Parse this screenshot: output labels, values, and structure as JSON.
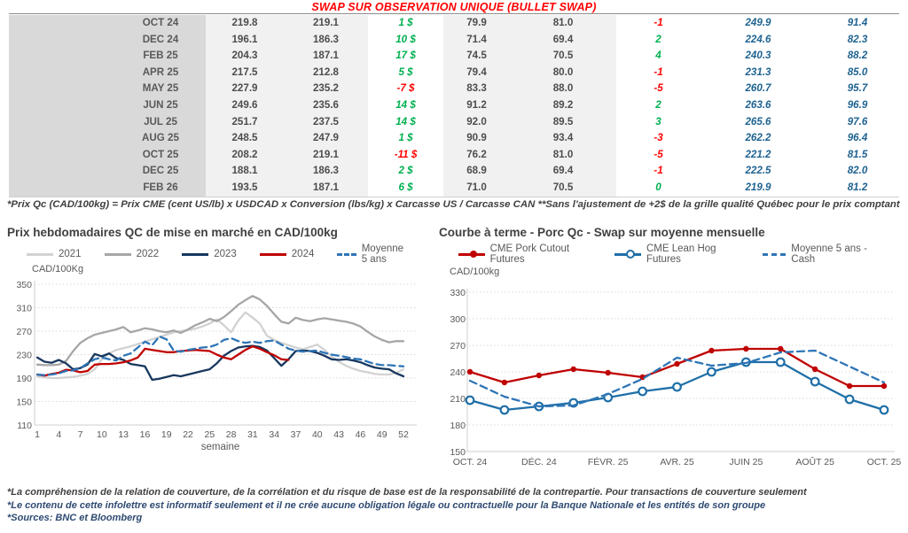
{
  "table": {
    "title": "SWAP SUR OBSERVATION UNIQUE (BULLET SWAP)",
    "footnote": "*Prix Qc (CAD/100kg) = Prix CME (cent US/lb) x USDCAD x Conversion (lbs/kg) x Carcasse US / Carcasse CAN **Sans l'ajustement de +2$ de la grille qualité Québec pour le prix comptant",
    "rows": [
      {
        "month": "OCT 24",
        "qc": "219.8",
        "swap": "219.1",
        "diff": "1 $",
        "diff_sign": "pos",
        "qc_us": "79.9",
        "swap_us": "81.0",
        "delta": "-1",
        "delta_sign": "neg",
        "moy": "249.9",
        "moy_us": "91.4"
      },
      {
        "month": "DEC 24",
        "qc": "196.1",
        "swap": "186.3",
        "diff": "10 $",
        "diff_sign": "pos",
        "qc_us": "71.4",
        "swap_us": "69.4",
        "delta": "2",
        "delta_sign": "pos",
        "moy": "224.6",
        "moy_us": "82.3"
      },
      {
        "month": "FEB 25",
        "qc": "204.3",
        "swap": "187.1",
        "diff": "17 $",
        "diff_sign": "pos",
        "qc_us": "74.5",
        "swap_us": "70.5",
        "delta": "4",
        "delta_sign": "pos",
        "moy": "240.3",
        "moy_us": "88.2"
      },
      {
        "month": "APR 25",
        "qc": "217.5",
        "swap": "212.8",
        "diff": "5 $",
        "diff_sign": "pos",
        "qc_us": "79.4",
        "swap_us": "80.0",
        "delta": "-1",
        "delta_sign": "neg",
        "moy": "231.3",
        "moy_us": "85.0"
      },
      {
        "month": "MAY 25",
        "qc": "227.9",
        "swap": "235.2",
        "diff": "-7 $",
        "diff_sign": "neg",
        "qc_us": "83.3",
        "swap_us": "88.0",
        "delta": "-5",
        "delta_sign": "neg",
        "moy": "260.7",
        "moy_us": "95.7"
      },
      {
        "month": "JUN 25",
        "qc": "249.6",
        "swap": "235.6",
        "diff": "14 $",
        "diff_sign": "pos",
        "qc_us": "91.2",
        "swap_us": "89.2",
        "delta": "2",
        "delta_sign": "pos",
        "moy": "263.6",
        "moy_us": "96.9"
      },
      {
        "month": "JUL 25",
        "qc": "251.7",
        "swap": "237.5",
        "diff": "14 $",
        "diff_sign": "pos",
        "qc_us": "92.0",
        "swap_us": "89.5",
        "delta": "3",
        "delta_sign": "pos",
        "moy": "265.6",
        "moy_us": "97.6"
      },
      {
        "month": "AUG 25",
        "qc": "248.5",
        "swap": "247.9",
        "diff": "1 $",
        "diff_sign": "pos",
        "qc_us": "90.9",
        "swap_us": "93.4",
        "delta": "-3",
        "delta_sign": "neg",
        "moy": "262.2",
        "moy_us": "96.4"
      },
      {
        "month": "OCT 25",
        "qc": "208.2",
        "swap": "219.1",
        "diff": "-11 $",
        "diff_sign": "neg",
        "qc_us": "76.2",
        "swap_us": "81.0",
        "delta": "-5",
        "delta_sign": "neg",
        "moy": "221.2",
        "moy_us": "81.5"
      },
      {
        "month": "DEC 25",
        "qc": "188.1",
        "swap": "186.3",
        "diff": "2 $",
        "diff_sign": "pos",
        "qc_us": "68.9",
        "swap_us": "69.4",
        "delta": "-1",
        "delta_sign": "neg",
        "moy": "222.5",
        "moy_us": "82.0"
      },
      {
        "month": "FEB 26",
        "qc": "193.5",
        "swap": "187.1",
        "diff": "6 $",
        "diff_sign": "pos",
        "qc_us": "71.0",
        "swap_us": "70.5",
        "delta": "0",
        "delta_sign": "pos",
        "moy": "219.9",
        "moy_us": "81.2"
      }
    ]
  },
  "chart_data": [
    {
      "id": "weekly_prices",
      "type": "line",
      "title": "Prix hebdomadaires QC de mise en marché en CAD/100kg",
      "ylabel": "CAD/100Kg",
      "xlabel": "semaine",
      "ylim": [
        110,
        350
      ],
      "y_ticks": [
        350,
        310,
        270,
        230,
        190,
        150,
        110
      ],
      "x_count": 52,
      "x_tick_positions": [
        0,
        3,
        6,
        9,
        12,
        15,
        18,
        21,
        24,
        27,
        30,
        33,
        36,
        39,
        42,
        45,
        48,
        51
      ],
      "x_tick_labels": [
        "1",
        "4",
        "7",
        "10",
        "13",
        "16",
        "19",
        "22",
        "25",
        "28",
        "31",
        "34",
        "37",
        "40",
        "43",
        "46",
        "49",
        "52"
      ],
      "grid": true,
      "legend_position": "top",
      "series": [
        {
          "name": "2021",
          "color": "#d2d2d2",
          "style": "solid",
          "marker": "none",
          "values": [
            193,
            191,
            190,
            190,
            191,
            192,
            194,
            197,
            205,
            222,
            232,
            238,
            241,
            244,
            248,
            252,
            256,
            260,
            264,
            268,
            270,
            272,
            274,
            278,
            283,
            290,
            280,
            268,
            288,
            302,
            293,
            283,
            262,
            255,
            250,
            246,
            242,
            239,
            243,
            247,
            238,
            227,
            218,
            211,
            206,
            202,
            200,
            197,
            196,
            196,
            199,
            205
          ]
        },
        {
          "name": "2022",
          "color": "#a6a6a6",
          "style": "solid",
          "marker": "none",
          "values": [
            213,
            212,
            212,
            213,
            219,
            236,
            250,
            258,
            264,
            267,
            270,
            273,
            277,
            268,
            271,
            275,
            273,
            270,
            268,
            271,
            267,
            273,
            280,
            285,
            291,
            287,
            294,
            304,
            315,
            323,
            330,
            324,
            313,
            299,
            286,
            283,
            293,
            289,
            287,
            290,
            292,
            290,
            288,
            286,
            283,
            278,
            269,
            261,
            255,
            251,
            253,
            253
          ]
        },
        {
          "name": "2023",
          "color": "#17375e",
          "style": "solid",
          "marker": "none",
          "values": [
            225,
            218,
            216,
            221,
            215,
            205,
            207,
            213,
            231,
            227,
            232,
            224,
            221,
            214,
            212,
            210,
            187,
            189,
            192,
            195,
            193,
            196,
            199,
            202,
            205,
            215,
            228,
            236,
            242,
            244,
            245,
            243,
            237,
            224,
            211,
            222,
            236,
            237,
            236,
            233,
            228,
            222,
            221,
            222,
            220,
            217,
            212,
            208,
            206,
            205,
            198,
            193
          ]
        },
        {
          "name": "2024",
          "color": "#c00000",
          "style": "solid",
          "marker": "none",
          "values": [
            196,
            194,
            197,
            199,
            204,
            203,
            200,
            202,
            213,
            214,
            214,
            215,
            217,
            220,
            225,
            240,
            238,
            236,
            234,
            234,
            236,
            237,
            238,
            237,
            236,
            230,
            225,
            222,
            230,
            238,
            244,
            240,
            234,
            229,
            222,
            221
          ]
        },
        {
          "name": "Moyenne 5 ans",
          "color": "#2e75b6",
          "style": "dashed",
          "marker": "none",
          "values": [
            196,
            195,
            196,
            198,
            202,
            203,
            207,
            215,
            222,
            225,
            222,
            220,
            228,
            232,
            242,
            252,
            246,
            261,
            256,
            237,
            235,
            238,
            240,
            242,
            243,
            247,
            255,
            258,
            253,
            250,
            252,
            250,
            253,
            254,
            247,
            240,
            237,
            235,
            236,
            237,
            233,
            230,
            228,
            226,
            223,
            222,
            218,
            214,
            212,
            212,
            211,
            210
          ]
        }
      ]
    },
    {
      "id": "forward_curve",
      "type": "line",
      "title": "Courbe à terme - Porc Qc - Swap sur moyenne mensuelle",
      "ylabel": "CAD/100kg",
      "xlabel": "",
      "ylim": [
        150,
        330
      ],
      "y_ticks": [
        330,
        300,
        270,
        240,
        210,
        180,
        150
      ],
      "x_count": 13,
      "x_tick_positions": [
        0,
        2,
        4,
        6,
        8,
        10,
        12
      ],
      "x_tick_labels": [
        "OCT. 24",
        "DÉC. 24",
        "FÉVR. 25",
        "AVR. 25",
        "JUIN 25",
        "AOÛT 25",
        "OCT. 25"
      ],
      "grid": true,
      "legend_position": "top",
      "series": [
        {
          "name": "CME Pork Cutout Futures",
          "color": "#c00000",
          "style": "solid",
          "marker": "dot-filled",
          "values": [
            240,
            228,
            236,
            243,
            239,
            234,
            249,
            264,
            266,
            266,
            243,
            224,
            224
          ]
        },
        {
          "name": "CME Lean Hog Futures",
          "color": "#1f6fa8",
          "style": "solid",
          "marker": "dot-open",
          "values": [
            208,
            197,
            201,
            205,
            211,
            218,
            223,
            240,
            251,
            251,
            229,
            209,
            197
          ]
        },
        {
          "name": "Moyenne 5 ans - Cash",
          "color": "#2e75b6",
          "style": "dashed",
          "marker": "none",
          "values": [
            230,
            212,
            201,
            202,
            215,
            232,
            256,
            247,
            250,
            262,
            264,
            246,
            228
          ]
        }
      ]
    }
  ],
  "footer": {
    "line1": "*La compréhension de la relation de couverture, de la corrélation et du risque de base est de la responsabilité de la contrepartie. Pour transactions de couverture seulement",
    "line2": "*Le contenu de cette infolettre est informatif seulement et il ne crée aucune obligation légale ou contractuelle pour la Banque Nationale et les entités de son groupe",
    "line3": "*Sources: BNC et Bloomberg"
  }
}
